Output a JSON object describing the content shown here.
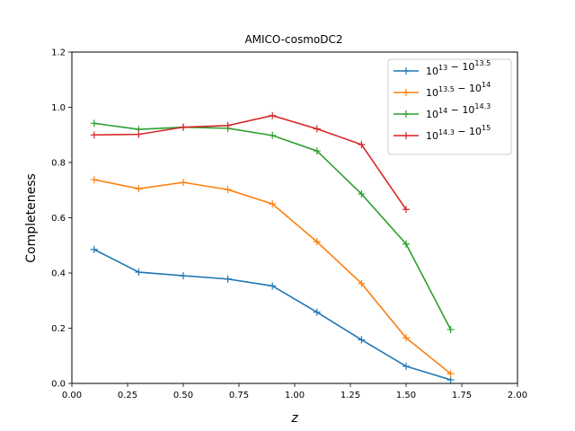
{
  "chart_data": {
    "type": "line",
    "title": "AMICO-cosmoDC2",
    "xlabel": "z",
    "ylabel": "Completeness",
    "xlim": [
      0.0,
      2.0
    ],
    "ylim": [
      0.0,
      1.2
    ],
    "xticks": [
      "0.00",
      "0.25",
      "0.50",
      "0.75",
      "1.00",
      "1.25",
      "1.50",
      "1.75",
      "2.00"
    ],
    "yticks": [
      "0.0",
      "0.2",
      "0.4",
      "0.6",
      "0.8",
      "1.0",
      "1.2"
    ],
    "grid": false,
    "legend_position": "top-right",
    "series": [
      {
        "name_base1": "10",
        "name_exp1": "13",
        "name_base2": "10",
        "name_exp2": "13.5",
        "color": "#1f77b4",
        "x": [
          0.1,
          0.3,
          0.5,
          0.7,
          0.9,
          1.1,
          1.3,
          1.5,
          1.7
        ],
        "y": [
          0.485,
          0.403,
          0.39,
          0.378,
          0.353,
          0.258,
          0.158,
          0.062,
          0.013
        ]
      },
      {
        "name_base1": "10",
        "name_exp1": "13.5",
        "name_base2": "10",
        "name_exp2": "14",
        "color": "#ff7f0e",
        "x": [
          0.1,
          0.3,
          0.5,
          0.7,
          0.9,
          1.1,
          1.3,
          1.5,
          1.7
        ],
        "y": [
          0.738,
          0.705,
          0.728,
          0.702,
          0.65,
          0.513,
          0.362,
          0.165,
          0.035
        ]
      },
      {
        "name_base1": "10",
        "name_exp1": "14",
        "name_base2": "10",
        "name_exp2": "14.3",
        "color": "#2ca02c",
        "x": [
          0.1,
          0.3,
          0.5,
          0.7,
          0.9,
          1.1,
          1.3,
          1.5,
          1.7
        ],
        "y": [
          0.942,
          0.92,
          0.928,
          0.924,
          0.898,
          0.842,
          0.686,
          0.505,
          0.195
        ]
      },
      {
        "name_base1": "10",
        "name_exp1": "14.3",
        "name_base2": "10",
        "name_exp2": "15",
        "color": "#d62728",
        "x": [
          0.1,
          0.3,
          0.5,
          0.7,
          0.9,
          1.1,
          1.3,
          1.5
        ],
        "y": [
          0.9,
          0.902,
          0.928,
          0.934,
          0.97,
          0.922,
          0.865,
          0.63
        ]
      }
    ]
  }
}
